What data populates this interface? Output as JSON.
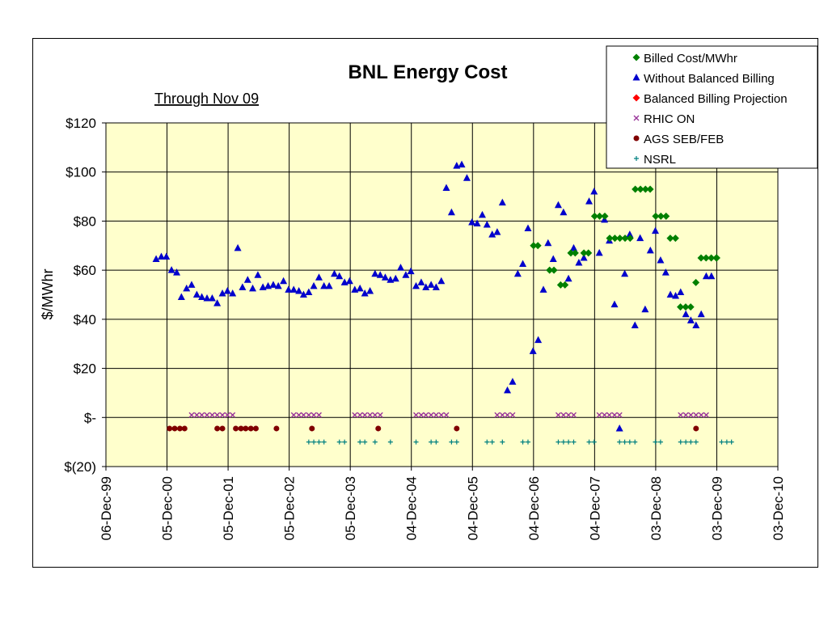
{
  "chart_data": {
    "type": "scatter",
    "title": "BNL Energy Cost",
    "subtitle": "Through Nov 09",
    "ylabel": "$/MWhr",
    "xlabel": "",
    "ylim": [
      -20,
      120
    ],
    "xlim": [
      "1999-12-06",
      "2010-12-03"
    ],
    "grid": true,
    "legend_position": "top-right",
    "background_color": "#FFFFCC",
    "y_ticks": [
      {
        "value": 120,
        "label": "$120"
      },
      {
        "value": 100,
        "label": "$100"
      },
      {
        "value": 80,
        "label": "$80"
      },
      {
        "value": 60,
        "label": "$60"
      },
      {
        "value": 40,
        "label": "$40"
      },
      {
        "value": 20,
        "label": "$20"
      },
      {
        "value": 0,
        "label": "$-"
      },
      {
        "value": -20,
        "label": "$(20)"
      }
    ],
    "x_ticks": [
      {
        "value": "1999-12-06",
        "label": "06-Dec-99"
      },
      {
        "value": "2000-12-05",
        "label": "05-Dec-00"
      },
      {
        "value": "2001-12-05",
        "label": "05-Dec-01"
      },
      {
        "value": "2002-12-05",
        "label": "05-Dec-02"
      },
      {
        "value": "2003-12-05",
        "label": "05-Dec-03"
      },
      {
        "value": "2004-12-04",
        "label": "04-Dec-04"
      },
      {
        "value": "2005-12-04",
        "label": "04-Dec-05"
      },
      {
        "value": "2006-12-04",
        "label": "04-Dec-06"
      },
      {
        "value": "2007-12-04",
        "label": "04-Dec-07"
      },
      {
        "value": "2008-12-03",
        "label": "03-Dec-08"
      },
      {
        "value": "2009-12-03",
        "label": "03-Dec-09"
      },
      {
        "value": "2010-12-03",
        "label": "03-Dec-10"
      }
    ],
    "series": [
      {
        "name": "Billed Cost/MWhr",
        "marker": "diamond",
        "color": "#008000",
        "x": [
          "2006-12-04",
          "2006-12-30",
          "2007-03-10",
          "2007-04-05",
          "2007-05-15",
          "2007-06-10",
          "2007-07-15",
          "2007-08-10",
          "2007-10-01",
          "2007-10-28",
          "2007-12-04",
          "2008-01-03",
          "2008-02-03",
          "2008-03-03",
          "2008-04-03",
          "2008-05-03",
          "2008-06-03",
          "2008-07-03",
          "2008-08-03",
          "2008-09-03",
          "2008-10-03",
          "2008-10-31",
          "2008-12-03",
          "2009-01-03",
          "2009-02-03",
          "2009-02-28",
          "2009-03-31",
          "2009-04-30",
          "2009-05-31",
          "2009-06-30",
          "2009-07-31",
          "2009-08-31",
          "2009-09-30",
          "2009-10-31",
          "2009-11-30",
          "2009-12-03"
        ],
        "values": [
          70,
          70,
          60,
          60,
          54,
          54,
          67,
          67,
          67,
          67,
          82,
          82,
          82,
          73,
          73,
          73,
          73,
          73,
          93,
          93,
          93,
          93,
          82,
          82,
          82,
          73,
          73,
          45,
          45,
          45,
          55,
          65,
          65,
          65,
          65,
          65
        ]
      },
      {
        "name": "Without Balanced Billing",
        "marker": "triangle",
        "color": "#0000CC",
        "x": [
          "2000-10-01",
          "2000-11-01",
          "2000-12-01",
          "2001-01-01",
          "2001-02-01",
          "2001-03-01",
          "2001-04-01",
          "2001-05-01",
          "2001-06-01",
          "2001-07-01",
          "2001-08-01",
          "2001-09-01",
          "2001-10-01",
          "2001-11-01",
          "2001-12-01",
          "2002-01-01",
          "2002-02-01",
          "2002-03-01",
          "2002-04-01",
          "2002-05-01",
          "2002-06-01",
          "2002-07-01",
          "2002-08-01",
          "2002-09-01",
          "2002-10-01",
          "2002-11-01",
          "2002-12-01",
          "2003-01-01",
          "2003-02-01",
          "2003-03-01",
          "2003-04-01",
          "2003-05-01",
          "2003-06-01",
          "2003-07-01",
          "2003-08-01",
          "2003-09-01",
          "2003-10-01",
          "2003-11-01",
          "2003-12-01",
          "2004-01-01",
          "2004-02-01",
          "2004-03-01",
          "2004-04-01",
          "2004-05-01",
          "2004-06-01",
          "2004-07-01",
          "2004-08-01",
          "2004-09-01",
          "2004-10-01",
          "2004-11-01",
          "2004-12-01",
          "2005-01-01",
          "2005-02-01",
          "2005-03-01",
          "2005-04-01",
          "2005-05-01",
          "2005-06-01",
          "2005-07-01",
          "2005-08-01",
          "2005-09-01",
          "2005-10-01",
          "2005-11-01",
          "2005-12-01",
          "2006-01-01",
          "2006-02-01",
          "2006-03-01",
          "2006-04-01",
          "2006-05-01",
          "2006-06-01",
          "2006-07-01",
          "2006-08-01",
          "2006-09-01",
          "2006-10-01",
          "2006-11-01",
          "2006-12-01",
          "2007-01-01",
          "2007-02-01",
          "2007-03-01",
          "2007-04-01",
          "2007-05-01",
          "2007-06-01",
          "2007-07-01",
          "2007-08-01",
          "2007-09-01",
          "2007-10-01",
          "2007-11-01",
          "2007-12-01",
          "2008-01-01",
          "2008-02-01",
          "2008-03-01",
          "2008-04-01",
          "2008-05-01",
          "2008-06-01",
          "2008-07-01",
          "2008-08-01",
          "2008-09-01",
          "2008-10-01",
          "2008-11-01",
          "2008-12-01",
          "2009-01-01",
          "2009-02-01",
          "2009-03-01",
          "2009-04-01",
          "2009-05-01",
          "2009-06-01",
          "2009-07-01",
          "2009-08-01",
          "2009-09-01",
          "2009-10-01",
          "2009-11-01"
        ],
        "values": [
          64.5,
          65.5,
          65.5,
          60,
          59,
          49,
          52.5,
          54,
          50,
          49,
          48.5,
          48.5,
          46.5,
          50.5,
          51.5,
          50.5,
          69,
          53,
          56,
          52.5,
          58,
          53,
          53.5,
          54,
          53.5,
          55.5,
          52,
          52,
          51.5,
          50,
          51,
          53.5,
          57,
          53.5,
          53.5,
          58.5,
          57.5,
          55,
          55.5,
          52,
          52.5,
          50.5,
          51.5,
          58.5,
          58,
          57,
          56,
          56.5,
          61,
          58,
          59.5,
          53.5,
          55,
          53,
          54,
          53,
          55.5,
          93.5,
          83.5,
          102.5,
          103,
          97.5,
          79.5,
          79,
          82.5,
          78.5,
          74.5,
          75.5,
          87.5,
          11,
          14.5,
          58.5,
          62.5,
          77,
          27,
          31.5,
          52,
          71,
          64.5,
          86.5,
          83.5,
          56.5,
          69,
          63,
          65,
          88,
          92,
          67,
          80.5,
          72,
          46,
          -4.5,
          58.5,
          74.5,
          37.5,
          73,
          44,
          68,
          76,
          64,
          59,
          50,
          49.5,
          51,
          42,
          39.5,
          37.5,
          42,
          57.5,
          57.5
        ]
      },
      {
        "name": "Balanced Billing Projection",
        "marker": "diamond",
        "color": "#FF0000",
        "x": [],
        "values": []
      },
      {
        "name": "RHIC ON",
        "marker": "x",
        "color": "#993399",
        "x": [
          "2001-05-01",
          "2001-06-01",
          "2001-07-01",
          "2001-08-01",
          "2001-09-01",
          "2001-10-01",
          "2001-11-01",
          "2001-12-01",
          "2002-01-01",
          "2003-01-01",
          "2003-02-01",
          "2003-03-01",
          "2003-04-01",
          "2003-05-01",
          "2003-06-01",
          "2004-01-01",
          "2004-02-01",
          "2004-03-01",
          "2004-04-01",
          "2004-05-01",
          "2004-06-01",
          "2005-01-01",
          "2005-02-01",
          "2005-03-01",
          "2005-04-01",
          "2005-05-01",
          "2005-06-01",
          "2005-07-01",
          "2006-05-01",
          "2006-06-01",
          "2006-07-01",
          "2006-08-01",
          "2007-05-01",
          "2007-06-01",
          "2007-07-01",
          "2007-08-01",
          "2008-01-01",
          "2008-02-01",
          "2008-03-01",
          "2008-04-01",
          "2008-05-01",
          "2009-05-01",
          "2009-06-01",
          "2009-07-01",
          "2009-08-01",
          "2009-09-01",
          "2009-10-01"
        ],
        "values": [
          1,
          1,
          1,
          1,
          1,
          1,
          1,
          1,
          1,
          1,
          1,
          1,
          1,
          1,
          1,
          1,
          1,
          1,
          1,
          1,
          1,
          1,
          1,
          1,
          1,
          1,
          1,
          1,
          1,
          1,
          1,
          1,
          1,
          1,
          1,
          1,
          1,
          1,
          1,
          1,
          1,
          1,
          1,
          1,
          1,
          1,
          1
        ]
      },
      {
        "name": "AGS SEB/FEB",
        "marker": "circle",
        "color": "#800000",
        "x": [
          "2000-12-20",
          "2001-01-20",
          "2001-02-20",
          "2001-03-20",
          "2001-10-01",
          "2001-11-01",
          "2002-01-20",
          "2002-02-20",
          "2002-03-20",
          "2002-04-20",
          "2002-05-20",
          "2002-09-20",
          "2003-04-20",
          "2004-05-20",
          "2005-09-01",
          "2009-08-01"
        ],
        "values": [
          -4.5,
          -4.5,
          -4.5,
          -4.5,
          -4.5,
          -4.5,
          -4.5,
          -4.5,
          -4.5,
          -4.5,
          -4.5,
          -4.5,
          -4.5,
          -4.5,
          -4.5,
          -4.5
        ]
      },
      {
        "name": "NSRL",
        "marker": "plus",
        "color": "#008080",
        "x": [
          "2003-04-01",
          "2003-05-01",
          "2003-06-01",
          "2003-07-01",
          "2003-10-01",
          "2003-11-01",
          "2004-02-01",
          "2004-03-01",
          "2004-05-01",
          "2004-08-01",
          "2005-01-01",
          "2005-04-01",
          "2005-05-01",
          "2005-08-01",
          "2005-09-01",
          "2006-03-01",
          "2006-04-01",
          "2006-06-01",
          "2006-10-01",
          "2006-11-01",
          "2007-05-01",
          "2007-06-01",
          "2007-07-01",
          "2007-08-01",
          "2007-11-01",
          "2007-12-01",
          "2008-05-01",
          "2008-06-01",
          "2008-07-01",
          "2008-08-01",
          "2008-12-01",
          "2009-01-01",
          "2009-05-01",
          "2009-06-01",
          "2009-07-01",
          "2009-08-01",
          "2010-01-01",
          "2010-02-01",
          "2010-03-01"
        ],
        "values": [
          -10,
          -10,
          -10,
          -10,
          -10,
          -10,
          -10,
          -10,
          -10,
          -10,
          -10,
          -10,
          -10,
          -10,
          -10,
          -10,
          -10,
          -10,
          -10,
          -10,
          -10,
          -10,
          -10,
          -10,
          -10,
          -10,
          -10,
          -10,
          -10,
          -10,
          -10,
          -10,
          -10,
          -10,
          -10,
          -10,
          -10,
          -10,
          -10
        ]
      }
    ]
  }
}
